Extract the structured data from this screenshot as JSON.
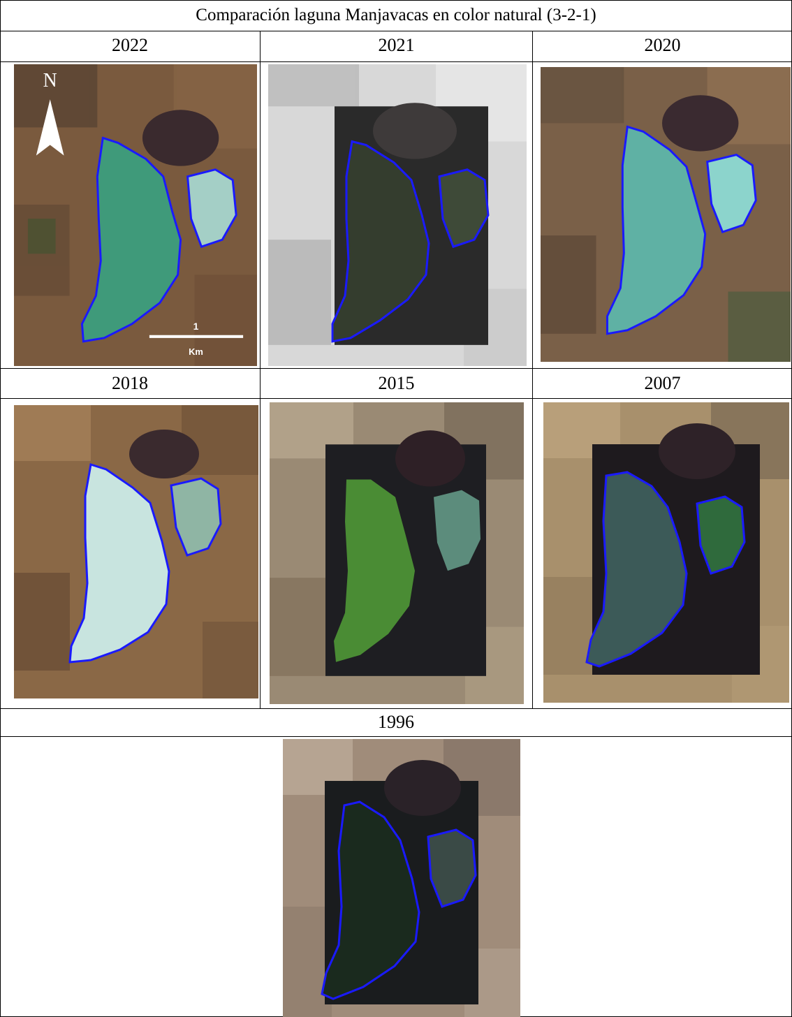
{
  "title": "Comparación laguna Manjavacas en color natural (3-2-1)",
  "panels": [
    {
      "year": "2022",
      "style": "color"
    },
    {
      "year": "2021",
      "style": "bw"
    },
    {
      "year": "2020",
      "style": "color"
    },
    {
      "year": "2018",
      "style": "pale"
    },
    {
      "year": "2015",
      "style": "pixel"
    },
    {
      "year": "2007",
      "style": "pixel-dark"
    },
    {
      "year": "1996",
      "style": "pixel-darkest"
    }
  ],
  "north_arrow": {
    "label": "N"
  },
  "scale_bar": {
    "value": "1",
    "unit": "Km"
  },
  "colors": {
    "lake_outline": "#1a1aff",
    "grid": "#000000"
  }
}
